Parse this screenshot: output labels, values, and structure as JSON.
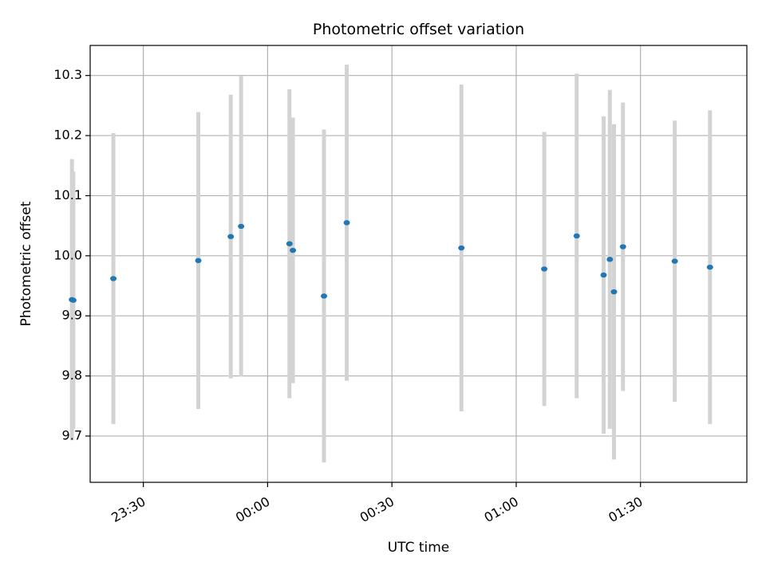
{
  "chart_data": {
    "type": "scatter",
    "title": "Photometric offset variation",
    "xlabel": "UTC time",
    "ylabel": "Photometric offset",
    "x_is_time": true,
    "xlim": [
      "23:17:10",
      "01:55:40"
    ],
    "ylim": [
      9.623,
      10.35
    ],
    "xticks": [
      {
        "time": "23:30",
        "label": "23:30"
      },
      {
        "time": "24:00",
        "label": "00:00"
      },
      {
        "time": "24:30",
        "label": "00:30"
      },
      {
        "time": "25:00",
        "label": "01:00"
      },
      {
        "time": "25:30",
        "label": "01:30"
      }
    ],
    "yticks": [
      "9.7",
      "9.8",
      "9.9",
      "10.0",
      "10.1",
      "10.2",
      "10.3"
    ],
    "grid": true,
    "point_color": "#1f77b4",
    "errorbar_color": "#d3d3d3",
    "points": [
      {
        "time": "23:12:46",
        "y": 9.927,
        "err": 0.234
      },
      {
        "time": "23:13:06",
        "y": 9.926,
        "err": 0.214
      },
      {
        "time": "23:22:46",
        "y": 9.962,
        "err": 0.242
      },
      {
        "time": "23:43:16",
        "y": 9.992,
        "err": 0.247
      },
      {
        "time": "23:51:06",
        "y": 10.032,
        "err": 0.236
      },
      {
        "time": "23:53:36",
        "y": 10.049,
        "err": 0.25
      },
      {
        "time": "00:05:16",
        "y": 10.02,
        "err": 0.257
      },
      {
        "time": "00:06:06",
        "y": 10.009,
        "err": 0.221
      },
      {
        "time": "00:13:36",
        "y": 9.933,
        "err": 0.277
      },
      {
        "time": "00:19:06",
        "y": 10.055,
        "err": 0.263
      },
      {
        "time": "00:46:46",
        "y": 10.013,
        "err": 0.272
      },
      {
        "time": "01:06:46",
        "y": 9.978,
        "err": 0.228
      },
      {
        "time": "01:14:36",
        "y": 10.033,
        "err": 0.27
      },
      {
        "time": "01:21:06",
        "y": 9.968,
        "err": 0.264
      },
      {
        "time": "01:22:36",
        "y": 9.994,
        "err": 0.282
      },
      {
        "time": "01:23:36",
        "y": 9.94,
        "err": 0.279
      },
      {
        "time": "01:25:46",
        "y": 10.015,
        "err": 0.24
      },
      {
        "time": "01:38:16",
        "y": 9.991,
        "err": 0.234
      },
      {
        "time": "01:46:46",
        "y": 9.981,
        "err": 0.261
      }
    ]
  }
}
